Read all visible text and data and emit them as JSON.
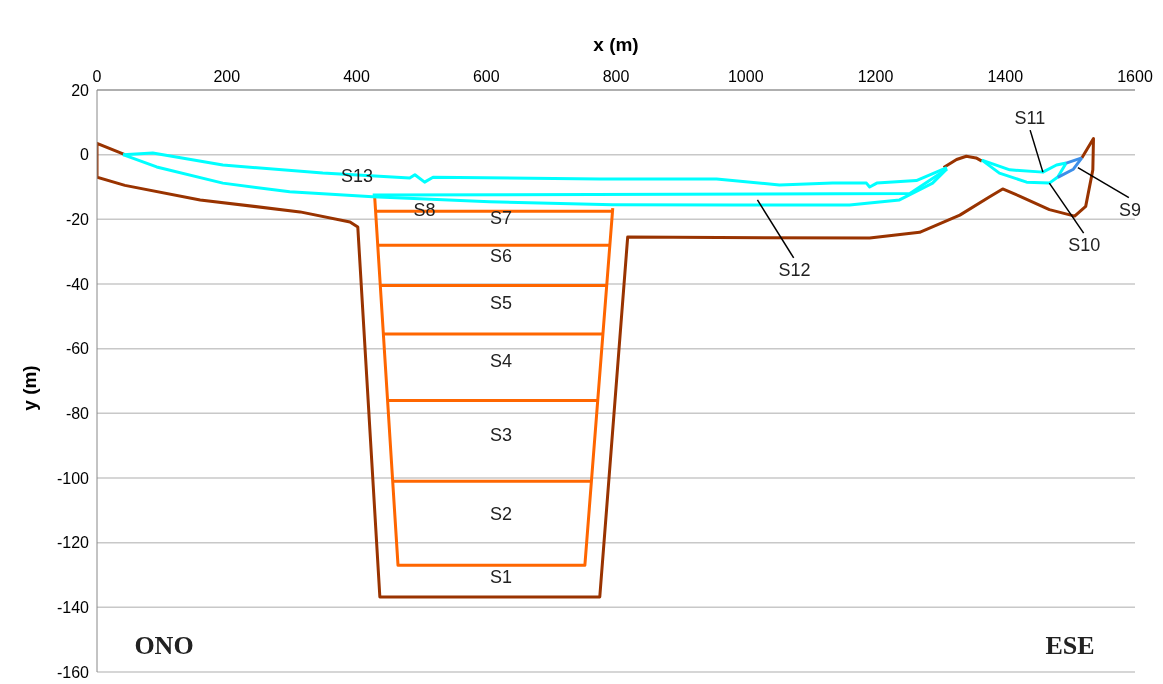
{
  "chart_data": {
    "type": "line",
    "xlabel": "x (m)",
    "ylabel": "y (m)",
    "xlim": [
      0,
      1600
    ],
    "xticks": [
      0,
      200,
      400,
      600,
      800,
      1000,
      1200,
      1400,
      1600
    ],
    "ylim": [
      -160,
      20
    ],
    "yticks": [
      -160,
      -140,
      -120,
      -100,
      -80,
      -60,
      -40,
      -20,
      0,
      20
    ],
    "grid": "y",
    "line_style": "solid",
    "series": [
      {
        "color": "#993300",
        "x": [
          43,
          0,
          0,
          43,
          159,
          313,
          390,
          402,
          436,
          775,
          818,
          1191,
          1268,
          1330,
          1376,
          1396,
          1422,
          1468,
          1507,
          1524,
          1535,
          1536,
          1518
        ],
        "values": [
          0,
          3.5,
          -7,
          -9.5,
          -14,
          -17.7,
          -20.8,
          -22.4,
          -136.8,
          -136.8,
          -25.5,
          -25.8,
          -24,
          -18.7,
          -13,
          -10.6,
          -12.8,
          -17,
          -19,
          -16,
          -4.7,
          5,
          -1
        ]
      },
      {
        "color": "#993300",
        "x": [
          1305,
          1325,
          1340,
          1355,
          1364
        ],
        "values": [
          -4,
          -1.5,
          -0.5,
          -1,
          -2
        ]
      },
      {
        "color": "#ff6600",
        "x": [
          428,
          464,
          752,
          795
        ],
        "values": [
          -13,
          -127,
          -127,
          -16.5
        ]
      },
      {
        "color": "#ff6600",
        "x": [
          430,
          794
        ],
        "values": [
          -17.5,
          -17.5
        ]
      },
      {
        "color": "#ff6600",
        "x": [
          433,
          790
        ],
        "values": [
          -28,
          -28
        ]
      },
      {
        "color": "#ff6600",
        "x": [
          437,
          785
        ],
        "values": [
          -40.5,
          -40.5
        ]
      },
      {
        "color": "#ff6600",
        "x": [
          441,
          780
        ],
        "values": [
          -55.5,
          -55.5
        ]
      },
      {
        "color": "#ff6600",
        "x": [
          448,
          772
        ],
        "values": [
          -76,
          -76
        ]
      },
      {
        "color": "#ff6600",
        "x": [
          456,
          762
        ],
        "values": [
          -101,
          -101
        ]
      },
      {
        "color": "#00ffff",
        "x": [
          40,
          86,
          194,
          348,
          482,
          490,
          505,
          518,
          775,
          955,
          1052,
          1134,
          1186,
          1191,
          1202,
          1263,
          1310
        ],
        "values": [
          0,
          0.5,
          -3.2,
          -5.7,
          -7.2,
          -6.2,
          -8.5,
          -7,
          -7.5,
          -7.5,
          -9.4,
          -8.8,
          -8.8,
          -10,
          -8.8,
          -8,
          -4
        ]
      },
      {
        "color": "#00ffff",
        "x": [
          425,
          1253,
          1310
        ],
        "values": [
          -12.5,
          -12,
          -4.4
        ]
      },
      {
        "color": "#00ffff",
        "x": [
          40,
          92,
          194,
          297,
          425,
          605,
          795,
          980,
          1160,
          1237,
          1288,
          1310
        ],
        "values": [
          0,
          -3.8,
          -8.8,
          -11.5,
          -13,
          -14.6,
          -15.5,
          -15.6,
          -15.6,
          -14,
          -8.8,
          -4.4
        ]
      },
      {
        "color": "#00ffff",
        "x": [
          1364,
          1407,
          1458,
          1479,
          1494
        ],
        "values": [
          -1.7,
          -4.7,
          -5.4,
          -3.2,
          -2.6
        ]
      },
      {
        "color": "#00ffff",
        "x": [
          1364,
          1391,
          1433,
          1468,
          1481,
          1494
        ],
        "values": [
          -1.7,
          -5.7,
          -8.5,
          -8.8,
          -6.9,
          -2.6
        ]
      },
      {
        "color": "#3d8fe8",
        "x": [
          1481,
          1505,
          1518
        ],
        "values": [
          -7,
          -4.5,
          -1
        ]
      },
      {
        "color": "#3d8fe8",
        "x": [
          1494,
          1518
        ],
        "values": [
          -2.6,
          -1
        ]
      }
    ],
    "annotations": [
      "S1",
      "S2",
      "S3",
      "S4",
      "S5",
      "S6",
      "S7",
      "S13",
      {
        "text": "S8",
        "x": 505,
        "y": -15.9
      },
      {
        "text": "S9",
        "x": 1512,
        "y": -4
      },
      {
        "text": "S10",
        "x": 1468,
        "y": -8.8
      },
      {
        "text": "S11",
        "x": 1458,
        "y": -5.4
      },
      {
        "text": "S12",
        "x": 1018,
        "y": -14
      },
      "ONO",
      "ESE"
    ]
  }
}
